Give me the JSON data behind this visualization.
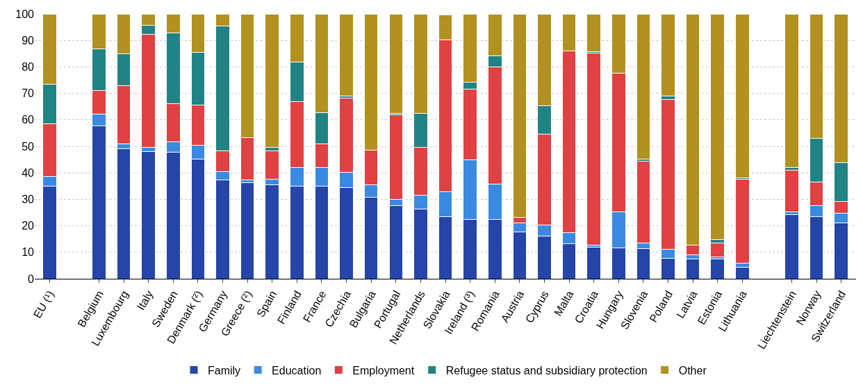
{
  "chart_data": {
    "type": "bar",
    "stacked": true,
    "categories": [
      "EU (¹)",
      null,
      "Belgium",
      "Luxembourg",
      "Italy",
      "Sweden",
      "Denmark (²)",
      "Germany",
      "Greece (²)",
      "Spain",
      "Finland",
      "France",
      "Czechia",
      "Bulgaria",
      "Portugal",
      "Netherlands",
      "Slovakia",
      "Ireland (³)",
      "Romania",
      "Austria",
      "Cyprus",
      "Malta",
      "Croatia",
      "Hungary",
      "Slovenia",
      "Poland",
      "Latvia",
      "Estonia",
      "Lithuania",
      null,
      "Liechtenstein",
      "Norway",
      "Switzerland"
    ],
    "series": [
      {
        "name": "Family",
        "color": "#2645a8",
        "values": [
          35,
          null,
          57.7,
          49,
          48,
          47.8,
          45.1,
          37.2,
          36.3,
          35.5,
          35,
          35,
          34.5,
          30.8,
          27.5,
          26.3,
          23.3,
          22.5,
          22.5,
          17.8,
          16,
          13.3,
          11.9,
          11.6,
          11.4,
          7.8,
          7.4,
          7.4,
          4.4,
          null,
          24.3,
          23.5,
          21.2
        ]
      },
      {
        "name": "Education",
        "color": "#3a8ae2",
        "values": [
          3.7,
          null,
          4.5,
          1.9,
          1.5,
          4,
          5.4,
          3.2,
          0.9,
          2,
          7,
          7,
          5.7,
          4.7,
          2.5,
          5.2,
          9.5,
          22.5,
          13.3,
          3.2,
          4.2,
          4.2,
          0.9,
          13.7,
          2,
          3.2,
          1.7,
          0.9,
          1.5,
          null,
          1,
          4,
          3.5
        ]
      },
      {
        "name": "Employment",
        "color": "#e04143",
        "values": [
          19.8,
          null,
          8.8,
          22.1,
          42.8,
          14.4,
          15.1,
          7.8,
          16,
          10.7,
          25,
          8.8,
          28.1,
          13,
          31.9,
          18,
          57.5,
          26.5,
          44.2,
          2.2,
          34.4,
          68.4,
          72.3,
          52.2,
          31.1,
          56.6,
          3.7,
          5.2,
          31.6,
          null,
          15.6,
          9,
          4.6
        ]
      },
      {
        "name": "Refugee status and subsidiary protection",
        "color": "#218384",
        "values": [
          15,
          null,
          15.7,
          12,
          3.4,
          26.5,
          20,
          47.3,
          0,
          1.5,
          14.7,
          11.8,
          0.6,
          0,
          0.6,
          13,
          0,
          2.7,
          4.2,
          0,
          10.7,
          0,
          0.7,
          0,
          0.6,
          1.3,
          0,
          1.2,
          0.5,
          null,
          1.2,
          16.5,
          14.5
        ]
      },
      {
        "name": "Other",
        "color": "#b29120",
        "values": [
          26.5,
          null,
          13.3,
          15,
          4.3,
          7.3,
          14.4,
          4.5,
          46.8,
          50.3,
          18.3,
          37.4,
          31.1,
          51.3,
          37.5,
          37.5,
          9.4,
          25.8,
          15.8,
          76.7,
          34.7,
          14,
          14.2,
          22.5,
          54.9,
          31.1,
          87,
          85.3,
          62,
          null,
          57.9,
          47,
          56.2
        ]
      }
    ],
    "ylim": [
      0,
      100
    ],
    "yticks": [
      0,
      10,
      20,
      30,
      40,
      50,
      60,
      70,
      80,
      90,
      100
    ],
    "grid": "y",
    "legend": "bottom"
  }
}
